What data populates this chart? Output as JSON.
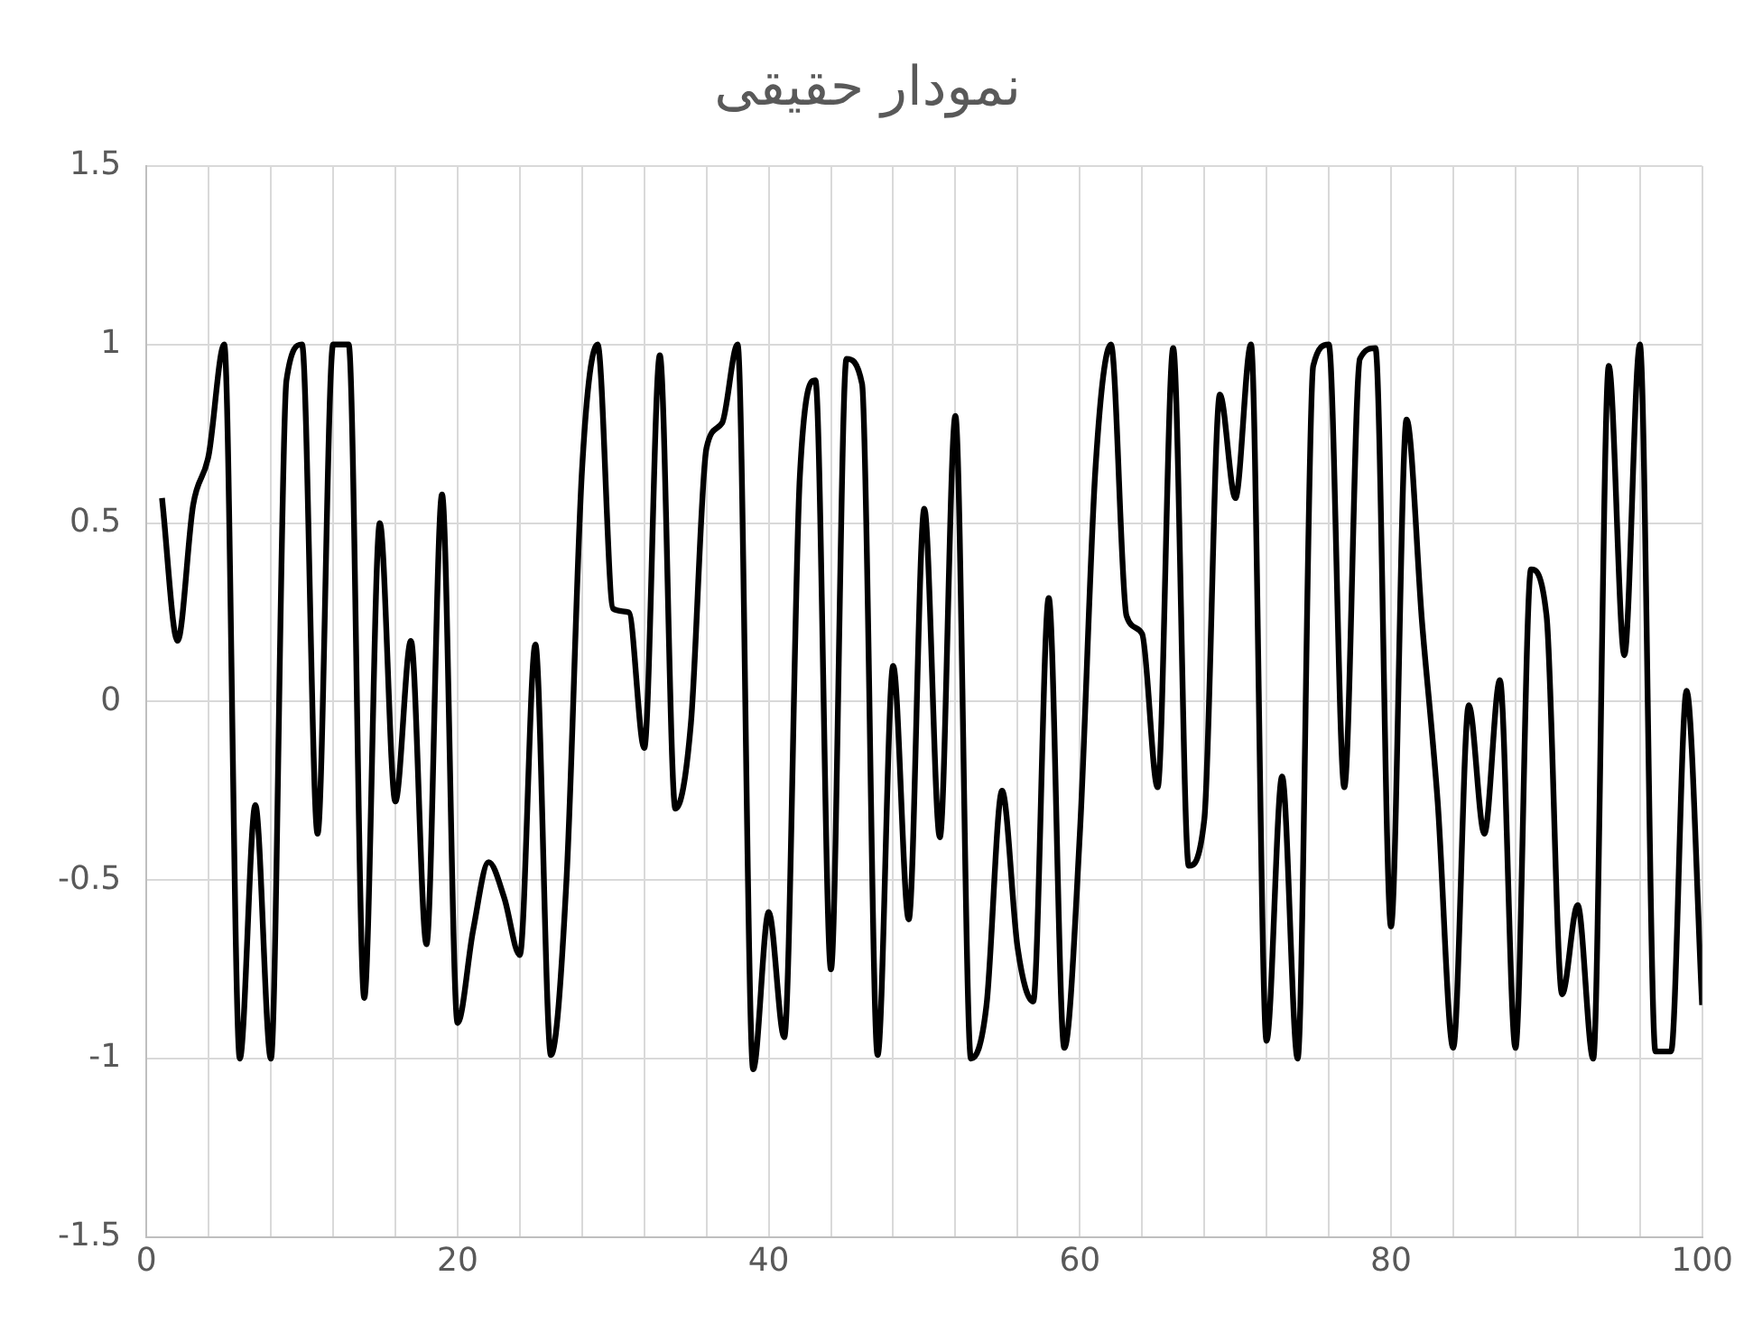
{
  "chart_data": {
    "type": "line",
    "title": "نمودار حقیقی",
    "x": [
      1,
      2,
      3,
      4,
      5,
      6,
      7,
      8,
      9,
      10,
      11,
      12,
      13,
      14,
      15,
      16,
      17,
      18,
      19,
      20,
      21,
      22,
      23,
      24,
      25,
      26,
      27,
      28,
      29,
      30,
      31,
      32,
      33,
      34,
      35,
      36,
      37,
      38,
      39,
      40,
      41,
      42,
      43,
      44,
      45,
      46,
      47,
      48,
      49,
      50,
      51,
      52,
      53,
      54,
      55,
      56,
      57,
      58,
      59,
      60,
      61,
      62,
      63,
      64,
      65,
      66,
      67,
      68,
      69,
      70,
      71,
      72,
      73,
      74,
      75,
      76,
      77,
      78,
      79,
      80,
      81,
      82,
      83,
      84,
      85,
      86,
      87,
      88,
      89,
      90,
      91,
      92,
      93,
      94,
      95,
      96,
      97,
      98,
      99,
      100
    ],
    "series": [
      {
        "color": "#000000",
        "values": [
          0.57,
          0.17,
          0.55,
          0.69,
          1.0,
          -1.0,
          -0.29,
          -1.0,
          0.9,
          1.0,
          -0.37,
          1.0,
          1.0,
          -0.83,
          0.5,
          -0.28,
          0.17,
          -0.68,
          0.58,
          -0.9,
          -0.64,
          -0.45,
          -0.55,
          -0.71,
          0.16,
          -0.99,
          -0.5,
          0.65,
          1.0,
          0.26,
          0.25,
          -0.13,
          0.97,
          -0.3,
          -0.06,
          0.71,
          0.78,
          1.0,
          -1.03,
          -0.59,
          -0.94,
          0.63,
          0.9,
          -0.75,
          0.96,
          0.89,
          -0.99,
          0.1,
          -0.61,
          0.54,
          -0.38,
          0.8,
          -1.0,
          -0.85,
          -0.25,
          -0.69,
          -0.84,
          0.29,
          -0.97,
          -0.37,
          0.65,
          1.0,
          0.24,
          0.19,
          -0.24,
          0.99,
          -0.46,
          -0.33,
          0.86,
          0.57,
          1.0,
          -0.95,
          -0.21,
          -1.0,
          0.94,
          1.0,
          -0.24,
          0.96,
          0.99,
          -0.63,
          0.79,
          0.22,
          -0.28,
          -0.97,
          -0.01,
          -0.37,
          0.06,
          -0.97,
          0.37,
          0.24,
          -0.82,
          -0.57,
          -1.0,
          0.94,
          0.13,
          1.0,
          -0.98,
          -0.98,
          0.03,
          -0.85
        ]
      }
    ],
    "xlim": [
      0,
      100
    ],
    "xticks": [
      0,
      {
        "value": 4,
        "label": null
      },
      {
        "value": 8,
        "label": null
      },
      {
        "value": 12,
        "label": null
      },
      {
        "value": 16,
        "label": null
      },
      20,
      {
        "value": 24,
        "label": null
      },
      {
        "value": 28,
        "label": null
      },
      {
        "value": 32,
        "label": null
      },
      {
        "value": 36,
        "label": null
      },
      40,
      {
        "value": 44,
        "label": null
      },
      {
        "value": 48,
        "label": null
      },
      {
        "value": 52,
        "label": null
      },
      {
        "value": 56,
        "label": null
      },
      60,
      {
        "value": 64,
        "label": null
      },
      {
        "value": 68,
        "label": null
      },
      {
        "value": 72,
        "label": null
      },
      {
        "value": 76,
        "label": null
      },
      80,
      {
        "value": 84,
        "label": null
      },
      {
        "value": 88,
        "label": null
      },
      {
        "value": 92,
        "label": null
      },
      {
        "value": 96,
        "label": null
      },
      100
    ],
    "ylim": [
      -1.5,
      1.5
    ],
    "yticks": [
      -1.5,
      -1,
      -0.5,
      0,
      0.5,
      1,
      1.5
    ],
    "grid": true,
    "legend": false,
    "marker": "none",
    "line_style": "solid"
  }
}
